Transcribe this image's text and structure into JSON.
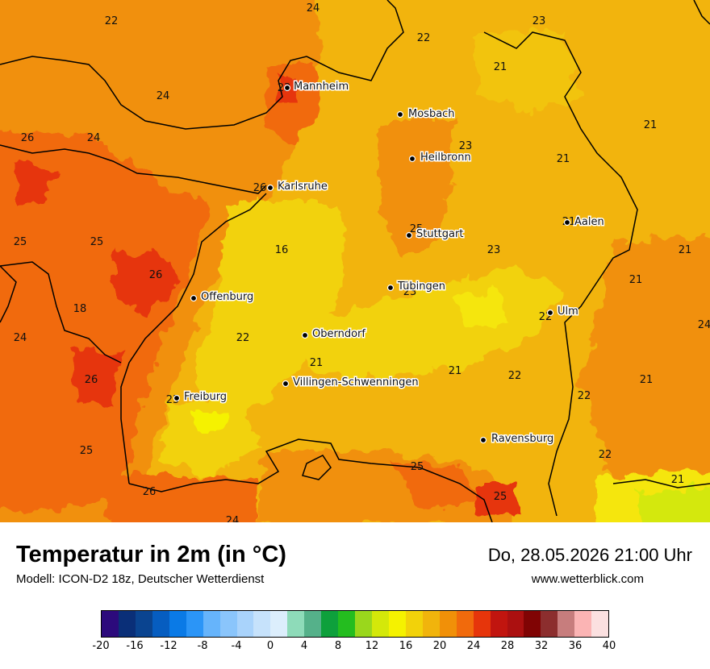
{
  "footer": {
    "title": "Temperatur in 2m (in °C)",
    "model": "Modell: ICON-D2 18z, Deutscher Wetterdienst",
    "datetime": "Do, 28.05.2026 21:00 Uhr",
    "website": "www.wetterblick.com"
  },
  "cities": [
    {
      "name": "Mannheim"
    },
    {
      "name": "Mosbach"
    },
    {
      "name": "Heilbronn"
    },
    {
      "name": "Karlsruhe"
    },
    {
      "name": "Stuttgart"
    },
    {
      "name": "Aalen"
    },
    {
      "name": "Tübingen"
    },
    {
      "name": "Offenburg"
    },
    {
      "name": "Ulm"
    },
    {
      "name": "Oberndorf"
    },
    {
      "name": "Villingen-Schwenningen"
    },
    {
      "name": "Freiburg"
    },
    {
      "name": "Ravensburg"
    }
  ],
  "values": [
    "24",
    "22",
    "22",
    "23",
    "21",
    "24",
    "26",
    "24",
    "21",
    "21",
    "23",
    "26",
    "25",
    "25",
    "25",
    "16",
    "23",
    "21",
    "26",
    "18",
    "24",
    "22",
    "21",
    "22",
    "21",
    "22",
    "21",
    "24",
    "22",
    "26",
    "25",
    "25",
    "22",
    "21",
    "26",
    "25",
    "24",
    "21",
    "21",
    "23",
    "25",
    "23"
  ],
  "legend": {
    "ticks": [
      "-20",
      "-16",
      "-12",
      "-8",
      "-4",
      "0",
      "4",
      "8",
      "12",
      "16",
      "20",
      "24",
      "28",
      "32",
      "36",
      "40"
    ],
    "colors": [
      "#2c0a7c",
      "#0a2f78",
      "#0a4490",
      "#065dc0",
      "#0a7ae6",
      "#2b95f7",
      "#66b4fb",
      "#8ac5fb",
      "#a9d3fb",
      "#c6e2fb",
      "#dceefc",
      "#8edbb9",
      "#55b18a",
      "#0ea03c",
      "#24bd1f",
      "#9ad71c",
      "#d4e80a",
      "#f5f200",
      "#f2d20a",
      "#f1b40c",
      "#f19008",
      "#f16a0c",
      "#e6350b",
      "#c1150f",
      "#ab1010",
      "#800404",
      "#8c2e2e",
      "#c77d7d",
      "#fbb4b4",
      "#fbe0e0"
    ]
  }
}
